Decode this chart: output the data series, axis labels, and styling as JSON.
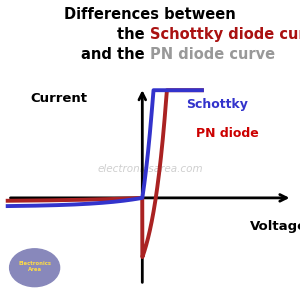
{
  "title_line1": "Differences between",
  "title_line2_black1": "the ",
  "title_line2_red": "Schottky diode curve",
  "title_line3_black1": "and the ",
  "title_line3_gray": "PN diode curve",
  "schottky_curve_color": "#3333cc",
  "pn_curve_color": "#aa2222",
  "label_schottky_color": "#3333cc",
  "label_pn_color": "#cc0000",
  "title_red_color": "#aa1111",
  "title_gray_color": "#999999",
  "label_schottky": "Schottky",
  "label_pn": "PN diode",
  "label_current": "Current",
  "label_voltage": "Voltage",
  "watermark": "electronicsarea.com",
  "bg_color": "#ffffff",
  "logo_circle_color": "#8888bb",
  "logo_text_color": "#ffdd44"
}
